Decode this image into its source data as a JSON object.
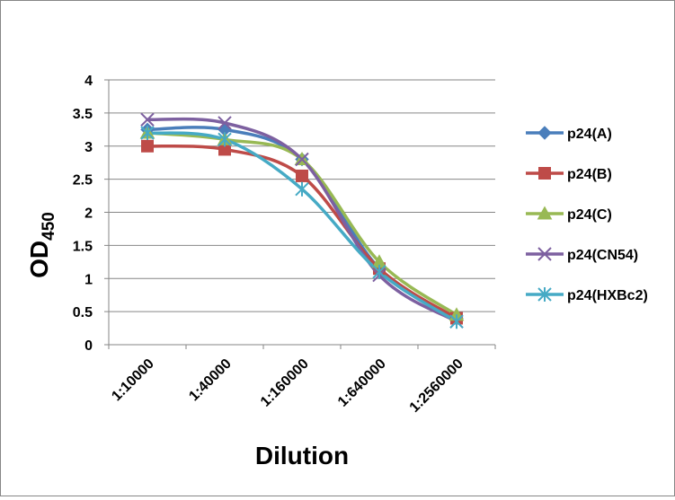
{
  "chart_data": {
    "type": "line",
    "title": "",
    "xlabel": "Dilution",
    "ylabel": "OD",
    "ylabel_subscript": "450",
    "categories": [
      "1:10000",
      "1:40000",
      "1:160000",
      "1:640000",
      "1:2560000"
    ],
    "ylim": [
      0,
      4
    ],
    "yticks": [
      "0",
      "0.5",
      "1",
      "1.5",
      "2",
      "2.5",
      "3",
      "3.5",
      "4"
    ],
    "grid": "horizontal",
    "legend_position": "right",
    "smooth": true,
    "series": [
      {
        "name": "p24(A)",
        "values": [
          3.25,
          3.25,
          2.8,
          1.15,
          0.4
        ],
        "color": "#4A7EBB",
        "marker": "diamond"
      },
      {
        "name": "p24(B)",
        "values": [
          3.0,
          2.95,
          2.55,
          1.15,
          0.4
        ],
        "color": "#BE4B48",
        "marker": "square"
      },
      {
        "name": "p24(C)",
        "values": [
          3.2,
          3.1,
          2.8,
          1.25,
          0.45
        ],
        "color": "#98B954",
        "marker": "triangle"
      },
      {
        "name": "p24(CN54)",
        "values": [
          3.4,
          3.35,
          2.8,
          1.05,
          0.35
        ],
        "color": "#7D60A0",
        "marker": "x"
      },
      {
        "name": "p24(HXBc2)",
        "values": [
          3.2,
          3.1,
          2.35,
          1.1,
          0.35
        ],
        "color": "#46AAC5",
        "marker": "star"
      }
    ]
  }
}
